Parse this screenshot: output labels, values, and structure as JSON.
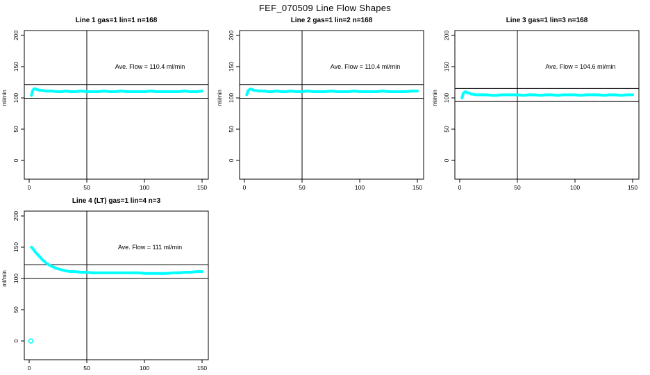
{
  "page_title": "FEF_070509  Line Flow Shapes",
  "colors": {
    "series": "#00FFFF",
    "axis": "#000000",
    "background": "#FFFFFF"
  },
  "chart_data": [
    {
      "type": "scatter",
      "title": "Line 1 gas=1 lin=1 n=168",
      "annotation": "Ave. Flow =  110.4  ml/min",
      "ave_flow": 110.4,
      "ylabel": "ml/min",
      "x_ticks": [
        0,
        50,
        100,
        150
      ],
      "y_ticks": [
        0,
        50,
        100,
        150,
        200
      ],
      "xlim": [
        -4,
        155
      ],
      "ylim": [
        -30,
        208
      ],
      "grid": false,
      "ref_lines": {
        "h": [
          121.4,
          99.4
        ],
        "v": 50
      },
      "x": [
        2,
        3,
        4,
        5,
        6,
        7,
        8,
        9,
        10,
        12,
        14,
        16,
        18,
        20,
        24,
        28,
        32,
        36,
        40,
        45,
        50,
        55,
        60,
        65,
        70,
        75,
        80,
        85,
        90,
        95,
        100,
        105,
        110,
        115,
        120,
        125,
        130,
        135,
        140,
        145,
        150
      ],
      "y": [
        104,
        112,
        114,
        115,
        114,
        113,
        113,
        112,
        112,
        112,
        111,
        111,
        111,
        111,
        110,
        110,
        111,
        110,
        110,
        111,
        110,
        110,
        110,
        111,
        110,
        110,
        111,
        110,
        110,
        110,
        110,
        111,
        110,
        110,
        110,
        110,
        110,
        111,
        110,
        110,
        111
      ]
    },
    {
      "type": "scatter",
      "title": "Line 2 gas=1 lin=2 n=168",
      "annotation": "Ave. Flow =  110.4  ml/min",
      "ave_flow": 110.4,
      "ylabel": "ml/min",
      "x_ticks": [
        0,
        50,
        100,
        150
      ],
      "y_ticks": [
        0,
        50,
        100,
        150,
        200
      ],
      "xlim": [
        -4,
        155
      ],
      "ylim": [
        -30,
        208
      ],
      "grid": false,
      "ref_lines": {
        "h": [
          121.4,
          99.4
        ],
        "v": 50
      },
      "x": [
        2,
        3,
        4,
        5,
        6,
        7,
        8,
        9,
        10,
        12,
        14,
        16,
        18,
        20,
        24,
        28,
        32,
        36,
        40,
        45,
        50,
        55,
        60,
        65,
        70,
        75,
        80,
        85,
        90,
        95,
        100,
        105,
        110,
        115,
        120,
        125,
        130,
        135,
        140,
        145,
        150
      ],
      "y": [
        105,
        111,
        113,
        114,
        114,
        113,
        112,
        112,
        112,
        111,
        111,
        111,
        111,
        110,
        110,
        111,
        110,
        110,
        111,
        110,
        110,
        111,
        110,
        110,
        110,
        111,
        110,
        110,
        110,
        111,
        110,
        110,
        110,
        110,
        111,
        110,
        110,
        110,
        110,
        111,
        111
      ]
    },
    {
      "type": "scatter",
      "title": "Line 3 gas=1 lin=3 n=168",
      "annotation": "Ave. Flow =  104.6  ml/min",
      "ave_flow": 104.6,
      "ylabel": "ml/min",
      "x_ticks": [
        0,
        50,
        100,
        150
      ],
      "y_ticks": [
        0,
        50,
        100,
        150,
        200
      ],
      "xlim": [
        -4,
        155
      ],
      "ylim": [
        -30,
        208
      ],
      "grid": false,
      "ref_lines": {
        "h": [
          115.1,
          94.1
        ],
        "v": 50
      },
      "x": [
        2,
        3,
        4,
        5,
        6,
        7,
        8,
        9,
        10,
        12,
        14,
        16,
        18,
        20,
        24,
        28,
        32,
        36,
        40,
        45,
        50,
        55,
        60,
        65,
        70,
        75,
        80,
        85,
        90,
        95,
        100,
        105,
        110,
        115,
        120,
        125,
        130,
        135,
        140,
        145,
        150
      ],
      "y": [
        100,
        107,
        109,
        110,
        109,
        108,
        108,
        107,
        106,
        106,
        105,
        105,
        105,
        105,
        105,
        104,
        104,
        105,
        105,
        105,
        105,
        104,
        105,
        105,
        104,
        105,
        105,
        104,
        105,
        105,
        105,
        104,
        105,
        105,
        105,
        104,
        105,
        105,
        104,
        105,
        105
      ]
    },
    {
      "type": "scatter",
      "title": "Line 4 (LT) gas=1 lin=4 n=3",
      "annotation": "Ave. Flow =  111  ml/min",
      "ave_flow": 111,
      "ylabel": "ml/min",
      "x_ticks": [
        0,
        50,
        100,
        150
      ],
      "y_ticks": [
        0,
        50,
        100,
        150,
        200
      ],
      "xlim": [
        -4,
        155
      ],
      "ylim": [
        -30,
        208
      ],
      "grid": false,
      "ref_lines": {
        "h": [
          122.1,
          99.9
        ],
        "v": 50
      },
      "x": [
        2,
        3,
        4,
        5,
        6,
        7,
        8,
        9,
        10,
        12,
        14,
        16,
        18,
        20,
        24,
        28,
        32,
        36,
        40,
        45,
        50,
        55,
        60,
        65,
        70,
        75,
        80,
        85,
        90,
        95,
        100,
        105,
        110,
        115,
        120,
        125,
        130,
        135,
        140,
        145,
        150
      ],
      "y": [
        150,
        148,
        146,
        143,
        141,
        139,
        137,
        135,
        133,
        129,
        126,
        123,
        121,
        119,
        116,
        114,
        112,
        111,
        111,
        110,
        110,
        109,
        109,
        109,
        109,
        109,
        109,
        109,
        109,
        109,
        108,
        108,
        108,
        108,
        108,
        109,
        109,
        110,
        110,
        111,
        111
      ],
      "outliers": [
        {
          "x": 1.5,
          "y": 0
        }
      ]
    }
  ]
}
